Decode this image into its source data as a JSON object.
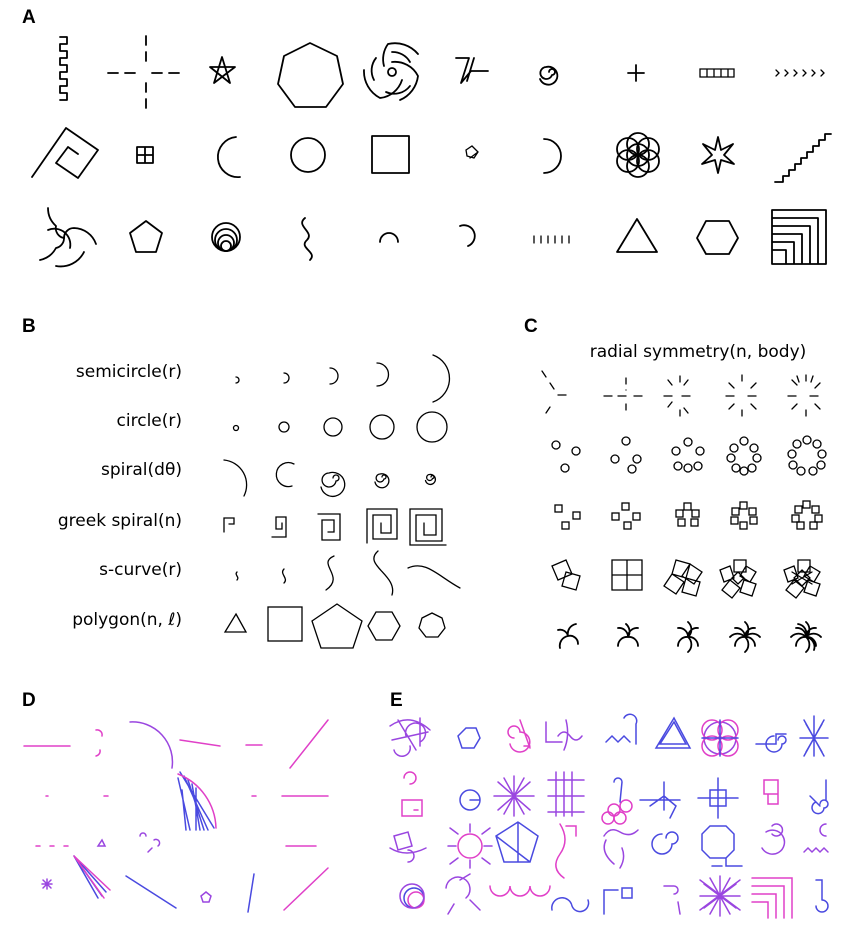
{
  "panels": {
    "a": {
      "letter": "A"
    },
    "b": {
      "letter": "B",
      "rows": [
        {
          "label": "semicircle(r)"
        },
        {
          "label": "circle(r)"
        },
        {
          "label": "spiral(dθ)"
        },
        {
          "label": "greek spiral(n)"
        },
        {
          "label": "s-curve(r)"
        },
        {
          "label": "polygon(n, ℓ)"
        }
      ]
    },
    "c": {
      "letter": "C",
      "title": "radial symmetry(n, body)"
    },
    "d": {
      "letter": "D"
    },
    "e": {
      "letter": "E"
    }
  },
  "colors": {
    "ink": "#000000",
    "magenta": "#e040c8",
    "blue": "#4a4ae0",
    "purple": "#9a46e0"
  }
}
